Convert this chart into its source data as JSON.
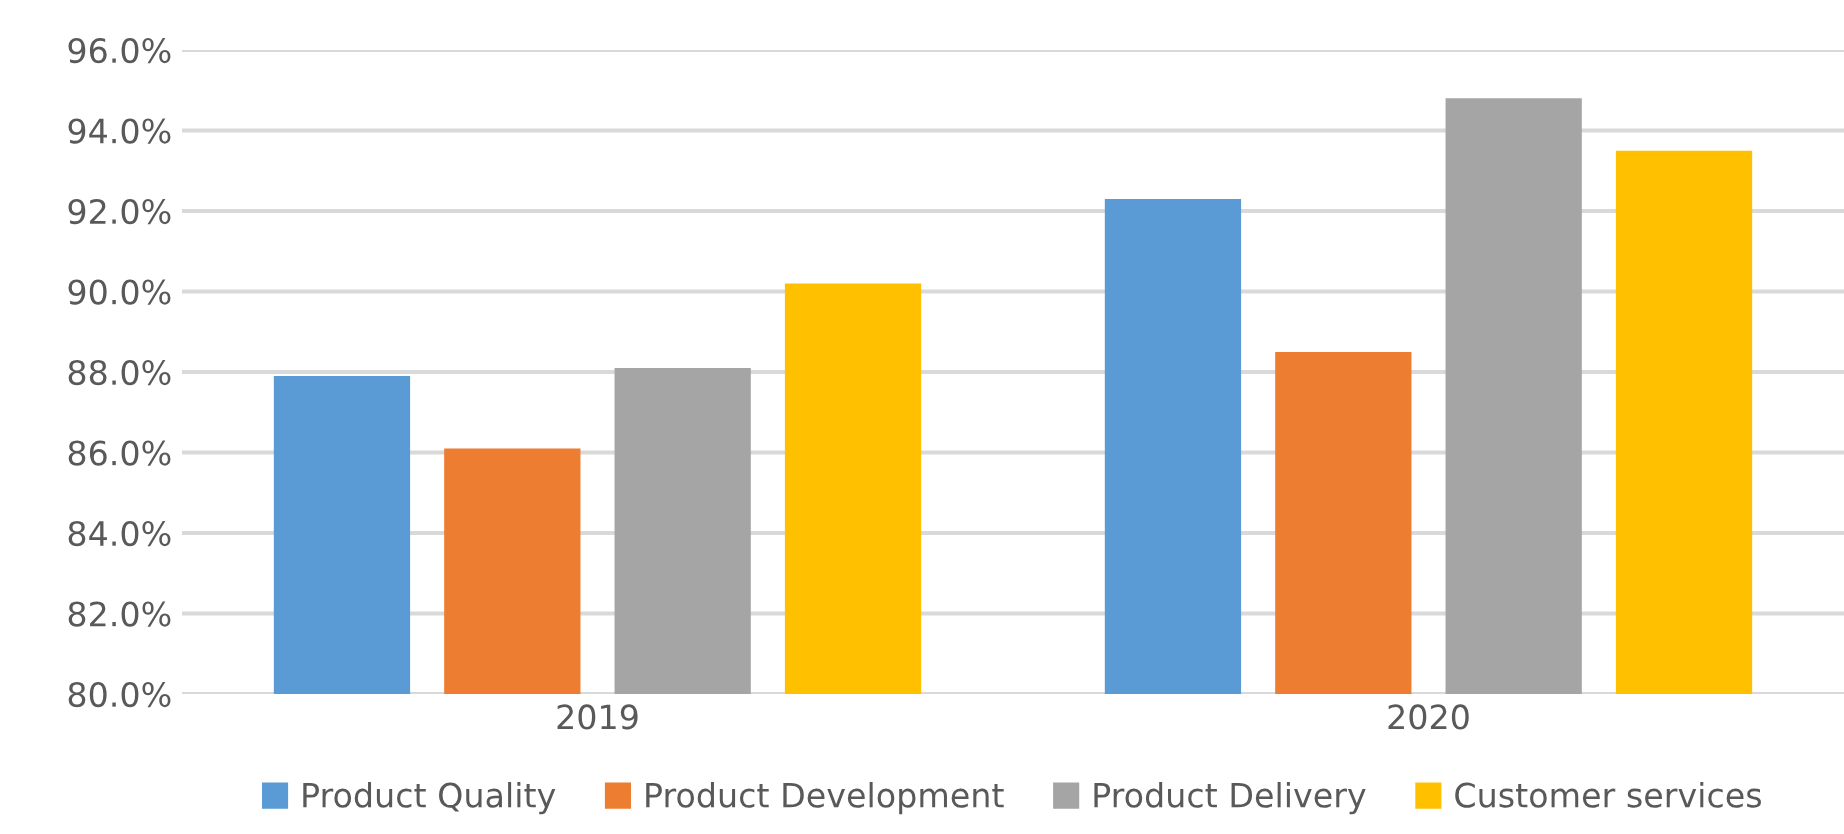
{
  "chart_data": {
    "type": "bar",
    "categories": [
      "2019",
      "2020"
    ],
    "series": [
      {
        "name": "Product Quality",
        "color": "#5b9bd5",
        "values": [
          87.9,
          92.3
        ]
      },
      {
        "name": "Product Development",
        "color": "#ed7d31",
        "values": [
          86.1,
          88.5
        ]
      },
      {
        "name": "Product Delivery",
        "color": "#a5a5a5",
        "values": [
          88.1,
          94.8
        ]
      },
      {
        "name": "Customer services",
        "color": "#ffc000",
        "values": [
          90.2,
          93.5
        ]
      }
    ],
    "ylim": [
      80,
      96
    ],
    "yticks": [
      {
        "value": 80,
        "label": "80.0%"
      },
      {
        "value": 82,
        "label": "82.0%"
      },
      {
        "value": 84,
        "label": "84.0%"
      },
      {
        "value": 86,
        "label": "86.0%"
      },
      {
        "value": 88,
        "label": "88.0%"
      },
      {
        "value": 90,
        "label": "90.0%"
      },
      {
        "value": 92,
        "label": "92.0%"
      },
      {
        "value": 94,
        "label": "94.0%"
      },
      {
        "value": 96,
        "label": "96.0%"
      }
    ],
    "grid": "y",
    "legend": "bottom"
  }
}
